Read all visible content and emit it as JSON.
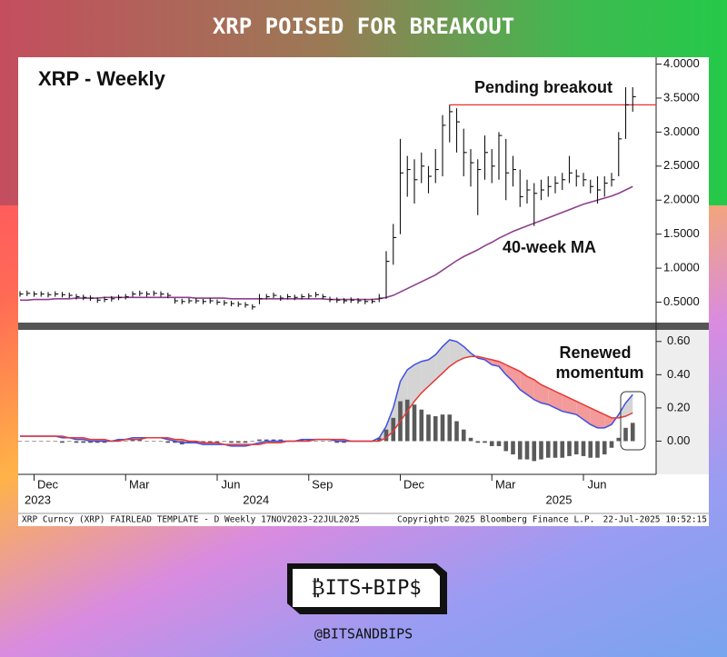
{
  "header": {
    "title": "XRP POISED FOR BREAKOUT"
  },
  "brand": {
    "logo": "₿ITS+BIP$",
    "handle": "@BITSANDBIPS"
  },
  "footer": {
    "left": "XRP Curncy (XRP) FAIRLEAD TEMPLATE - D  Weekly 17NOV2023-22JUL2025",
    "middle": "Copyright© 2025 Bloomberg Finance L.P.",
    "right": "22-Jul-2025 10:52:15"
  },
  "chart_data": [
    {
      "type": "ohlc",
      "title": "XRP - Weekly",
      "color": "#111111",
      "categories": [
        null,
        null,
        null,
        null,
        null,
        null,
        null,
        null,
        null,
        null,
        null,
        null,
        null,
        null,
        null,
        null,
        null,
        null,
        null,
        null,
        null,
        null,
        null,
        null,
        null,
        null,
        null,
        null,
        null,
        null,
        null,
        null,
        null,
        null,
        null,
        null,
        null,
        null,
        null,
        null,
        null,
        null,
        null,
        null,
        null,
        null,
        null,
        null,
        null,
        null,
        null,
        null,
        null,
        null,
        null,
        null,
        null,
        null,
        null,
        null,
        null,
        null,
        null,
        null,
        null,
        null,
        null,
        null,
        null,
        null,
        null,
        null,
        null,
        null,
        null,
        null,
        null,
        null,
        null,
        null,
        null,
        null,
        null,
        null,
        null,
        null,
        null,
        null
      ],
      "high": [
        0.66,
        0.67,
        0.66,
        0.66,
        0.65,
        0.66,
        0.65,
        0.64,
        0.62,
        0.61,
        0.6,
        0.57,
        0.58,
        0.59,
        0.61,
        0.62,
        0.66,
        0.67,
        0.66,
        0.67,
        0.66,
        0.64,
        0.56,
        0.55,
        0.56,
        0.56,
        0.55,
        0.56,
        0.54,
        0.53,
        0.52,
        0.51,
        0.5,
        0.47,
        0.62,
        0.62,
        0.64,
        0.6,
        0.62,
        0.61,
        0.62,
        0.63,
        0.65,
        0.62,
        0.58,
        0.57,
        0.56,
        0.57,
        0.56,
        0.55,
        0.55,
        0.62,
        1.25,
        1.65,
        2.9,
        2.65,
        2.6,
        2.7,
        2.5,
        2.75,
        3.25,
        3.4,
        3.35,
        3.05,
        2.75,
        2.6,
        2.95,
        2.75,
        3.0,
        2.9,
        2.65,
        2.45,
        2.3,
        2.25,
        2.3,
        2.35,
        2.35,
        2.4,
        2.65,
        2.45,
        2.4,
        2.3,
        2.35,
        2.35,
        2.4,
        3.0,
        3.66,
        3.66
      ],
      "low": [
        0.58,
        0.59,
        0.58,
        0.58,
        0.57,
        0.58,
        0.57,
        0.56,
        0.54,
        0.53,
        0.52,
        0.49,
        0.5,
        0.51,
        0.53,
        0.54,
        0.58,
        0.59,
        0.58,
        0.59,
        0.58,
        0.56,
        0.48,
        0.47,
        0.48,
        0.48,
        0.47,
        0.48,
        0.46,
        0.45,
        0.44,
        0.43,
        0.42,
        0.39,
        0.47,
        0.54,
        0.56,
        0.52,
        0.54,
        0.53,
        0.54,
        0.55,
        0.57,
        0.54,
        0.5,
        0.49,
        0.48,
        0.49,
        0.48,
        0.47,
        0.48,
        0.5,
        0.55,
        1.05,
        1.5,
        2.05,
        1.95,
        2.25,
        2.1,
        2.25,
        2.35,
        2.85,
        2.7,
        2.35,
        2.2,
        1.78,
        2.3,
        2.25,
        2.3,
        2.0,
        2.2,
        1.9,
        1.95,
        1.62,
        2.0,
        2.05,
        2.1,
        2.15,
        2.25,
        2.2,
        2.2,
        2.1,
        1.95,
        2.05,
        2.2,
        2.35,
        2.9,
        3.3
      ],
      "close": [
        0.62,
        0.63,
        0.62,
        0.62,
        0.61,
        0.62,
        0.61,
        0.6,
        0.58,
        0.57,
        0.56,
        0.53,
        0.54,
        0.55,
        0.57,
        0.58,
        0.62,
        0.63,
        0.62,
        0.63,
        0.62,
        0.6,
        0.52,
        0.51,
        0.52,
        0.52,
        0.51,
        0.52,
        0.5,
        0.49,
        0.48,
        0.47,
        0.46,
        0.43,
        0.55,
        0.58,
        0.6,
        0.56,
        0.58,
        0.57,
        0.58,
        0.59,
        0.61,
        0.58,
        0.54,
        0.53,
        0.52,
        0.53,
        0.52,
        0.51,
        0.51,
        0.56,
        1.1,
        1.45,
        2.4,
        2.45,
        2.3,
        2.5,
        2.35,
        2.45,
        3.1,
        3.3,
        3.15,
        2.7,
        2.55,
        2.45,
        2.7,
        2.5,
        2.95,
        2.4,
        2.45,
        2.05,
        2.15,
        2.1,
        2.15,
        2.2,
        2.25,
        2.3,
        2.4,
        2.35,
        2.3,
        2.2,
        2.15,
        2.25,
        2.3,
        2.9,
        3.4,
        3.52
      ],
      "ma": {
        "label": "40-week MA",
        "color": "#8e3f8e",
        "values": [
          0.53,
          0.53,
          0.54,
          0.54,
          0.54,
          0.55,
          0.55,
          0.55,
          0.56,
          0.56,
          0.56,
          0.56,
          0.57,
          0.57,
          0.57,
          0.57,
          0.57,
          0.57,
          0.57,
          0.57,
          0.57,
          0.57,
          0.57,
          0.57,
          0.57,
          0.56,
          0.56,
          0.56,
          0.56,
          0.56,
          0.55,
          0.55,
          0.55,
          0.55,
          0.55,
          0.55,
          0.55,
          0.55,
          0.55,
          0.55,
          0.55,
          0.55,
          0.55,
          0.55,
          0.54,
          0.54,
          0.54,
          0.54,
          0.54,
          0.54,
          0.54,
          0.55,
          0.57,
          0.6,
          0.65,
          0.7,
          0.75,
          0.8,
          0.85,
          0.9,
          0.97,
          1.04,
          1.11,
          1.17,
          1.22,
          1.27,
          1.33,
          1.38,
          1.44,
          1.49,
          1.54,
          1.58,
          1.62,
          1.66,
          1.7,
          1.74,
          1.78,
          1.82,
          1.86,
          1.9,
          1.94,
          1.97,
          2.0,
          2.03,
          2.06,
          2.1,
          2.15,
          2.2
        ]
      },
      "annotation": {
        "text": "Pending breakout",
        "level": 3.4,
        "start": 61,
        "color": "#e83030"
      },
      "ylim": [
        0.2,
        4.1
      ],
      "yticks": [
        {
          "value": 0.5,
          "label": "0.5000"
        },
        {
          "value": 1,
          "label": "1.0000"
        },
        {
          "value": 1.5,
          "label": "1.5000"
        },
        {
          "value": 2,
          "label": "2.0000"
        },
        {
          "value": 2.5,
          "label": "2.5000"
        },
        {
          "value": 3,
          "label": "3.0000"
        },
        {
          "value": 3.5,
          "label": "3.5000"
        },
        {
          "value": 4,
          "label": "4.0000"
        }
      ]
    },
    {
      "type": "line",
      "categories": [
        null,
        null,
        null,
        null,
        null,
        null,
        null,
        null,
        null,
        null,
        null,
        null,
        null,
        null,
        null,
        null,
        null,
        null,
        null,
        null,
        null,
        null,
        null,
        null,
        null,
        null,
        null,
        null,
        null,
        null,
        null,
        null,
        null,
        null,
        null,
        null,
        null,
        null,
        null,
        null,
        null,
        null,
        null,
        null,
        null,
        null,
        null,
        null,
        null,
        null,
        null,
        null,
        null,
        null,
        null,
        null,
        null,
        null,
        null,
        null,
        null,
        null,
        null,
        null,
        null,
        null,
        null,
        null,
        null,
        null,
        null,
        null,
        null,
        null,
        null,
        null,
        null,
        null,
        null,
        null,
        null,
        null,
        null,
        null,
        null,
        null,
        null,
        null
      ],
      "series": [
        {
          "color": "#3f4fe6",
          "values": [
            0.03,
            0.03,
            0.03,
            0.03,
            0.03,
            0.03,
            0.02,
            0.02,
            0.01,
            0.01,
            0.0,
            0.0,
            0.0,
            0.0,
            0.01,
            0.01,
            0.02,
            0.02,
            0.02,
            0.02,
            0.02,
            0.01,
            0.0,
            -0.01,
            -0.01,
            -0.01,
            -0.02,
            -0.02,
            -0.02,
            -0.02,
            -0.03,
            -0.03,
            -0.03,
            -0.02,
            -0.01,
            0.0,
            0.0,
            0.0,
            0.0,
            0.0,
            0.01,
            0.01,
            0.01,
            0.01,
            0.01,
            0.0,
            0.0,
            0.0,
            0.0,
            0.0,
            0.0,
            0.02,
            0.09,
            0.2,
            0.36,
            0.43,
            0.46,
            0.48,
            0.49,
            0.52,
            0.57,
            0.61,
            0.6,
            0.57,
            0.53,
            0.5,
            0.49,
            0.46,
            0.45,
            0.4,
            0.36,
            0.31,
            0.28,
            0.25,
            0.23,
            0.22,
            0.2,
            0.18,
            0.17,
            0.16,
            0.13,
            0.1,
            0.08,
            0.08,
            0.1,
            0.16,
            0.23,
            0.28
          ]
        },
        {
          "color": "#e53935",
          "values": [
            0.03,
            0.03,
            0.03,
            0.03,
            0.03,
            0.03,
            0.03,
            0.02,
            0.02,
            0.02,
            0.01,
            0.01,
            0.01,
            0.0,
            0.0,
            0.01,
            0.01,
            0.01,
            0.02,
            0.02,
            0.02,
            0.02,
            0.01,
            0.01,
            0.0,
            0.0,
            -0.01,
            -0.01,
            -0.01,
            -0.02,
            -0.02,
            -0.02,
            -0.02,
            -0.02,
            -0.02,
            -0.01,
            -0.01,
            -0.01,
            0.0,
            0.0,
            0.0,
            0.0,
            0.01,
            0.01,
            0.01,
            0.01,
            0.01,
            0.0,
            0.0,
            0.0,
            0.0,
            0.0,
            0.02,
            0.06,
            0.12,
            0.18,
            0.24,
            0.29,
            0.33,
            0.37,
            0.41,
            0.45,
            0.48,
            0.5,
            0.51,
            0.51,
            0.5,
            0.49,
            0.48,
            0.46,
            0.44,
            0.42,
            0.39,
            0.37,
            0.34,
            0.32,
            0.3,
            0.28,
            0.26,
            0.24,
            0.22,
            0.2,
            0.18,
            0.16,
            0.14,
            0.14,
            0.15,
            0.17
          ]
        }
      ],
      "histogram": {
        "color": "#5a5a5a",
        "values": [
          0,
          0,
          0,
          0,
          0,
          0,
          -0.01,
          0,
          -0.01,
          -0.01,
          -0.01,
          -0.01,
          -0.01,
          0,
          0.01,
          0,
          0.01,
          0.01,
          0,
          0,
          0,
          -0.01,
          -0.01,
          -0.02,
          -0.01,
          -0.01,
          -0.01,
          -0.01,
          -0.01,
          0,
          -0.01,
          -0.01,
          -0.01,
          0,
          0.01,
          0.01,
          0.01,
          0.01,
          0,
          0,
          0.01,
          0.01,
          0,
          0,
          0,
          -0.01,
          -0.01,
          0,
          0,
          0,
          0,
          0.02,
          0.07,
          0.14,
          0.24,
          0.25,
          0.22,
          0.19,
          0.16,
          0.15,
          0.16,
          0.16,
          0.12,
          0.07,
          0.02,
          -0.01,
          -0.01,
          -0.03,
          -0.03,
          -0.06,
          -0.08,
          -0.11,
          -0.11,
          -0.12,
          -0.11,
          -0.1,
          -0.1,
          -0.1,
          -0.09,
          -0.08,
          -0.09,
          -0.1,
          -0.1,
          -0.08,
          -0.04,
          0.02,
          0.08,
          0.11
        ]
      },
      "annotation": {
        "lines": [
          "Renewed",
          "momentum"
        ]
      },
      "ylim": [
        -0.2,
        0.67
      ],
      "yticks": [
        {
          "value": 0,
          "label": "0.00"
        },
        {
          "value": 0.2,
          "label": "0.20"
        },
        {
          "value": 0.4,
          "label": "0.40"
        },
        {
          "value": 0.6,
          "label": "0.60"
        }
      ],
      "xticks": [
        {
          "value": 2,
          "label": "Dec"
        },
        {
          "value": 15,
          "label": "Mar"
        },
        {
          "value": 28,
          "label": "Jun"
        },
        {
          "value": 41,
          "label": "Sep"
        },
        {
          "value": 54,
          "label": "Dec"
        },
        {
          "value": 67,
          "label": "Mar"
        },
        {
          "value": 80,
          "label": "Jun"
        }
      ],
      "year_ticks": [
        {
          "value": 0,
          "label": "2023"
        },
        {
          "value": 31,
          "label": "2024"
        },
        {
          "value": 74,
          "label": "2025"
        }
      ]
    }
  ]
}
